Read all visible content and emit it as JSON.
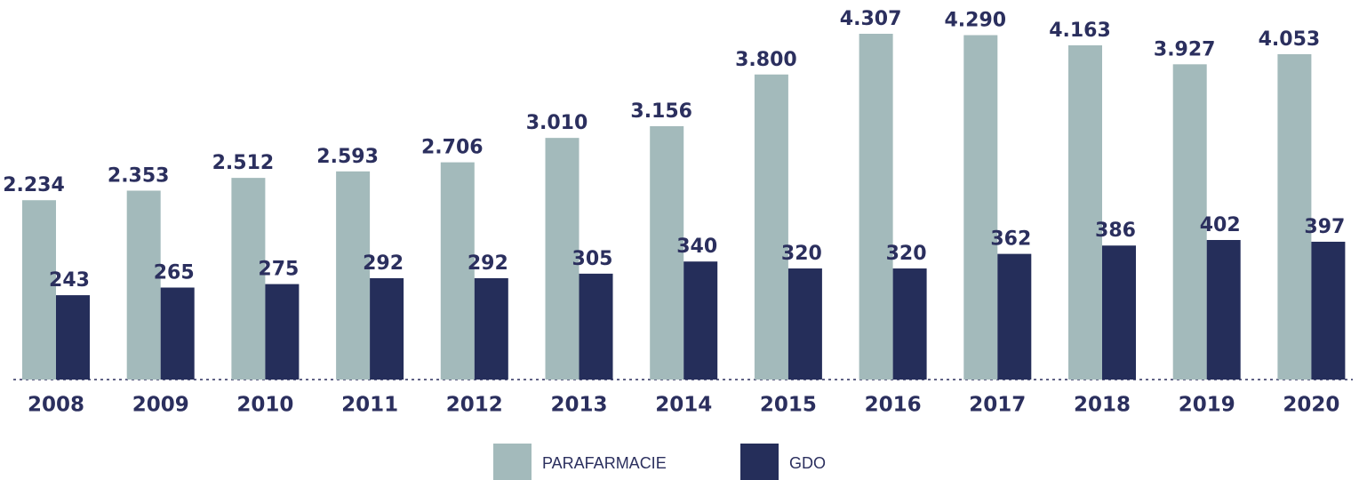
{
  "chart_data": {
    "type": "bar",
    "categories": [
      "2008",
      "2009",
      "2010",
      "2011",
      "2012",
      "2013",
      "2014",
      "2015",
      "2016",
      "2017",
      "2018",
      "2019",
      "2020"
    ],
    "series": [
      {
        "name": "PARAFARMACIE",
        "color": "#a3babb",
        "values": [
          2234,
          2353,
          2512,
          2593,
          2706,
          3010,
          3156,
          3800,
          4307,
          4290,
          4163,
          3927,
          4053
        ],
        "value_labels": [
          "2.234",
          "2.353",
          "2.512",
          "2.593",
          "2.706",
          "3.010",
          "3.156",
          "3.800",
          "4.307",
          "4.290",
          "4.163",
          "3.927",
          "4.053"
        ]
      },
      {
        "name": "GDO",
        "color": "#252e5a",
        "axis": "y2",
        "values": [
          243,
          265,
          275,
          292,
          292,
          305,
          340,
          320,
          320,
          362,
          386,
          402,
          397
        ]
      }
    ]
  }
}
